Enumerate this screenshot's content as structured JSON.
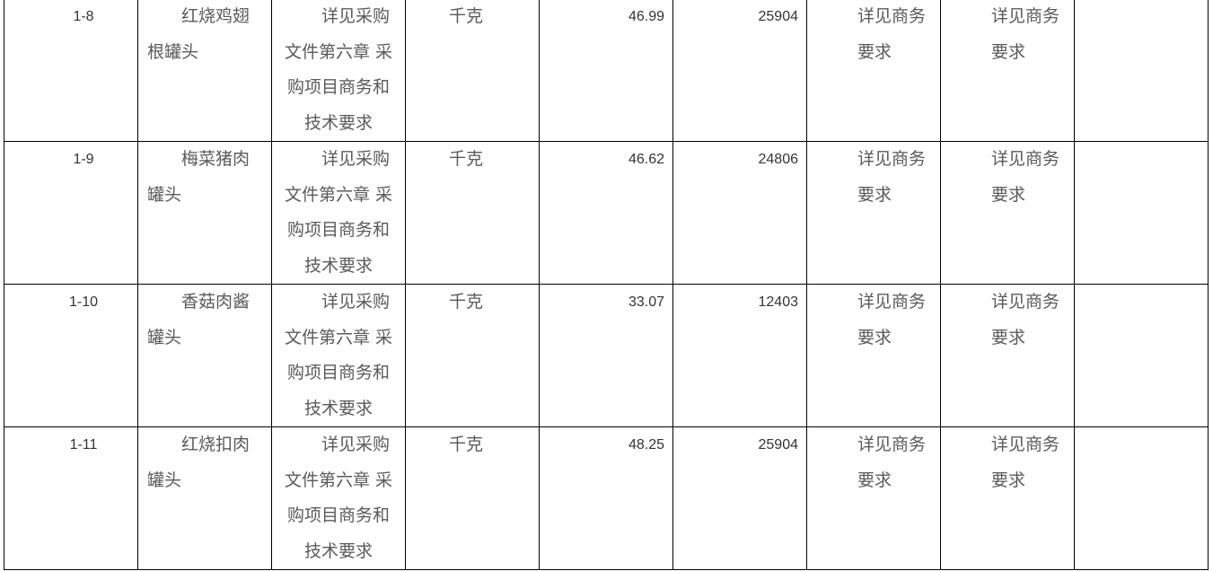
{
  "rows": [
    {
      "code": "1-8",
      "name": "红烧鸡翅根罐头",
      "spec": "详见采购文件第六章 采购项目商务和技术要求",
      "unit": "千克",
      "price": "46.99",
      "qty": "25904",
      "req1": "详见商务要求",
      "req2": "详见商务要求",
      "note": ""
    },
    {
      "code": "1-9",
      "name": "梅菜猪肉罐头",
      "spec": "详见采购文件第六章 采购项目商务和技术要求",
      "unit": "千克",
      "price": "46.62",
      "qty": "24806",
      "req1": "详见商务要求",
      "req2": "详见商务要求",
      "note": ""
    },
    {
      "code": "1-10",
      "name": "香菇肉酱罐头",
      "spec": "详见采购文件第六章 采购项目商务和技术要求",
      "unit": "千克",
      "price": "33.07",
      "qty": "12403",
      "req1": "详见商务要求",
      "req2": "详见商务要求",
      "note": ""
    },
    {
      "code": "1-11",
      "name": "红烧扣肉罐头",
      "spec": "详见采购文件第六章 采购项目商务和技术要求",
      "unit": "千克",
      "price": "48.25",
      "qty": "25904",
      "req1": "详见商务要求",
      "req2": "详见商务要求",
      "note": ""
    }
  ]
}
